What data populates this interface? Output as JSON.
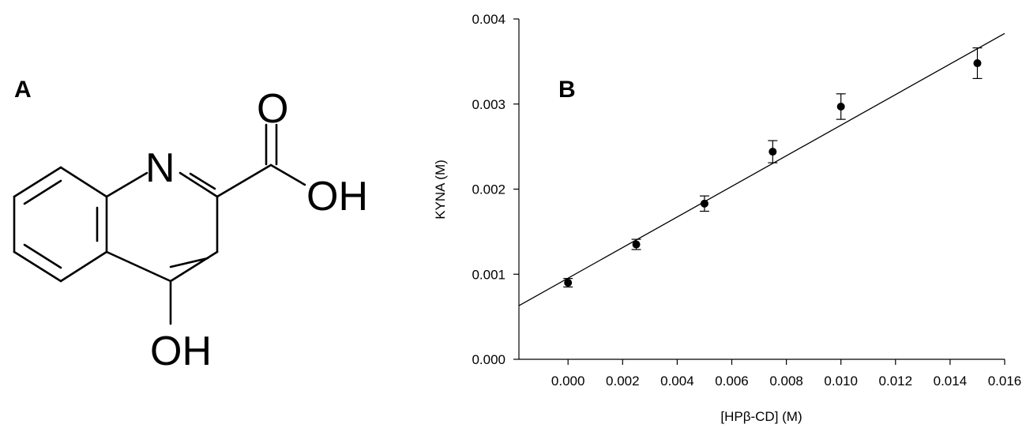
{
  "panel_a": {
    "label": "A",
    "atoms": {
      "nitrogen": "N",
      "carbonyl_oxygen": "O",
      "acid_hydroxyl": "OH",
      "ring_hydroxyl": "OH"
    }
  },
  "panel_b": {
    "label": "B"
  },
  "chart_data": {
    "type": "scatter",
    "title": "",
    "xlabel": "[HPβ-CD] (M)",
    "ylabel": "KYNA (M)",
    "xlim": [
      -0.0018,
      0.016
    ],
    "ylim": [
      0.0,
      0.004
    ],
    "x_ticks": [
      "0.000",
      "0.002",
      "0.004",
      "0.006",
      "0.008",
      "0.010",
      "0.012",
      "0.014",
      "0.016"
    ],
    "y_ticks": [
      "0.000",
      "0.001",
      "0.002",
      "0.003",
      "0.004"
    ],
    "grid": false,
    "legend": "none",
    "series": [
      {
        "points": [
          {
            "x": 0.0,
            "y": 0.0009,
            "err": 5e-05
          },
          {
            "x": 0.0025,
            "y": 0.00135,
            "err": 6e-05
          },
          {
            "x": 0.005,
            "y": 0.00183,
            "err": 9e-05
          },
          {
            "x": 0.0075,
            "y": 0.00244,
            "err": 0.00013
          },
          {
            "x": 0.01,
            "y": 0.00297,
            "err": 0.00015
          },
          {
            "x": 0.015,
            "y": 0.00348,
            "err": 0.00018
          }
        ]
      }
    ],
    "fit_line": {
      "x_start": -0.0018,
      "y_start": 0.00063,
      "x_end": 0.016,
      "y_end": 0.00383
    },
    "colors": {
      "marker": "#000000",
      "line": "#000000",
      "axis": "#000000"
    }
  }
}
